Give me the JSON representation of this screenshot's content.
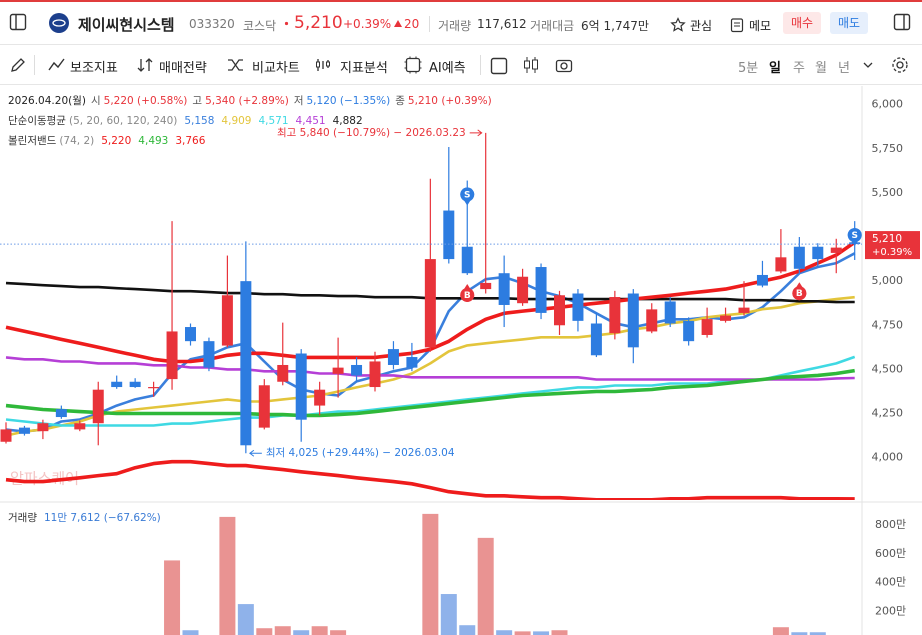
{
  "header": {
    "stock_name": "제이씨현시스템",
    "code": "033320",
    "market": "코스닥",
    "price": "5,210",
    "change_rate": "+0.39%",
    "change": "20",
    "volume_label": "거래량",
    "volume": "117,612",
    "amount_label": "거래대금",
    "amount": "6억 1,747만",
    "favorite": "관심",
    "memo": "메모",
    "buy": "매수",
    "sell": "매도"
  },
  "toolbar": {
    "tools": [
      "보조지표",
      "매매전략",
      "비교차트",
      "지표분석",
      "AI예측"
    ],
    "periods": [
      "5분",
      "일",
      "주",
      "월",
      "년"
    ],
    "active": 1
  },
  "chart_data": [
    {
      "type": "candlestick",
      "date_label": "2026.04.20(월)",
      "ohlc_legend": [
        {
          "label": "시",
          "text": "5,220 (+0.58%)",
          "color": "#e8333a"
        },
        {
          "label": "고",
          "text": "5,340 (+2.89%)",
          "color": "#e8333a"
        },
        {
          "label": "저",
          "text": "5,120 (−1.35%)",
          "color": "#2d7ce0"
        },
        {
          "label": "종",
          "text": "5,210 (+0.39%)",
          "color": "#e8333a"
        }
      ],
      "up_color": "#e8333a",
      "down_color": "#2d7ce0",
      "open": [
        4090,
        4170,
        4150,
        4275,
        4160,
        4195,
        4430,
        4430,
        4395,
        4445,
        4740,
        4660,
        4635,
        5000,
        4170,
        4430,
        4590,
        4295,
        4475,
        4525,
        4400,
        4615,
        4570,
        4625,
        5400,
        5195,
        4955,
        5045,
        4875,
        5080,
        4750,
        4930,
        4760,
        4705,
        4930,
        4715,
        4885,
        4775,
        4695,
        4775,
        4820,
        5035,
        5055,
        5195,
        5195,
        5160,
        5220
      ],
      "high": [
        4200,
        4180,
        4215,
        4295,
        4210,
        4430,
        4465,
        4450,
        4430,
        5340,
        4760,
        4680,
        5145,
        5225,
        4445,
        4765,
        4615,
        4430,
        4680,
        4570,
        4600,
        4660,
        4650,
        5580,
        5760,
        5570,
        5840,
        5145,
        5070,
        5100,
        4945,
        4955,
        4820,
        4945,
        4955,
        4875,
        4910,
        4795,
        4850,
        4850,
        5000,
        5115,
        5295,
        5250,
        5215,
        5240,
        5340
      ],
      "low": [
        4080,
        4125,
        4105,
        4220,
        4150,
        4070,
        4390,
        4395,
        4345,
        4385,
        4635,
        4490,
        4625,
        4025,
        4160,
        4410,
        4090,
        4240,
        4340,
        4430,
        4375,
        4500,
        4490,
        4600,
        5100,
        5035,
        4930,
        4740,
        4860,
        4785,
        4695,
        4715,
        4570,
        4670,
        4535,
        4705,
        4740,
        4635,
        4680,
        4765,
        4805,
        4965,
        5045,
        5045,
        5080,
        5045,
        5120
      ],
      "close": [
        4160,
        4135,
        4195,
        4230,
        4195,
        4385,
        4400,
        4400,
        4400,
        4715,
        4660,
        4510,
        4920,
        4070,
        4410,
        4525,
        4215,
        4385,
        4510,
        4465,
        4545,
        4525,
        4510,
        5125,
        5125,
        5045,
        4990,
        4865,
        5025,
        4820,
        4920,
        4775,
        4580,
        4910,
        4625,
        4840,
        4760,
        4660,
        4785,
        4805,
        4850,
        4975,
        5135,
        5070,
        5125,
        5190,
        5210
      ],
      "indicators": [
        {
          "label": "단순이동평균",
          "params": "(5, 20, 60, 120, 240)",
          "lines": [
            {
              "color": "#3a7fdc",
              "value_label": "5,158",
              "values": [
                4159,
                4148,
                4159,
                4205,
                4216,
                4250,
                4295,
                4330,
                4352,
                4477,
                4557,
                4580,
                4625,
                4648,
                4545,
                4443,
                4386,
                4364,
                4352,
                4432,
                4460,
                4489,
                4511,
                4614,
                4830,
                4943,
                5011,
                5023,
                4989,
                4943,
                4915,
                4875,
                4818,
                4761,
                4739,
                4761,
                4784,
                4784,
                4795,
                4784,
                4795,
                4852,
                4943,
                5045,
                5080,
                5102,
                5158
              ]
            },
            {
              "color": "#e3c53c",
              "value_label": "4,909",
              "values": [
                4125,
                4148,
                4159,
                4182,
                4205,
                4239,
                4261,
                4273,
                4284,
                4295,
                4307,
                4318,
                4330,
                4318,
                4318,
                4330,
                4341,
                4352,
                4375,
                4398,
                4420,
                4443,
                4477,
                4534,
                4602,
                4636,
                4648,
                4659,
                4670,
                4682,
                4682,
                4682,
                4693,
                4705,
                4727,
                4739,
                4761,
                4773,
                4795,
                4807,
                4818,
                4841,
                4852,
                4875,
                4886,
                4898,
                4909
              ]
            },
            {
              "color": "#3fd9e3",
              "value_label": "4,571",
              "values": [
                4216,
                4205,
                4193,
                4182,
                4182,
                4182,
                4182,
                4182,
                4182,
                4193,
                4193,
                4205,
                4216,
                4227,
                4227,
                4239,
                4239,
                4250,
                4261,
                4261,
                4273,
                4284,
                4295,
                4307,
                4318,
                4330,
                4341,
                4352,
                4364,
                4375,
                4386,
                4398,
                4398,
                4409,
                4409,
                4409,
                4420,
                4420,
                4420,
                4432,
                4432,
                4443,
                4466,
                4489,
                4511,
                4534,
                4571
              ]
            },
            {
              "color": "#b53fd6",
              "value_label": "4,451",
              "values": [
                4568,
                4557,
                4557,
                4545,
                4545,
                4534,
                4534,
                4534,
                4523,
                4523,
                4511,
                4511,
                4500,
                4500,
                4489,
                4489,
                4489,
                4477,
                4477,
                4466,
                4466,
                4466,
                4455,
                4455,
                4455,
                4455,
                4455,
                4455,
                4455,
                4455,
                4455,
                4455,
                4443,
                4443,
                4443,
                4443,
                4443,
                4443,
                4443,
                4443,
                4443,
                4443,
                4443,
                4443,
                4443,
                4449,
                4451
              ]
            },
            {
              "color": "#111111",
              "value_label": "4,882",
              "values": [
                4989,
                4983,
                4977,
                4972,
                4966,
                4966,
                4960,
                4955,
                4949,
                4943,
                4943,
                4938,
                4932,
                4932,
                4926,
                4926,
                4920,
                4920,
                4915,
                4915,
                4909,
                4909,
                4909,
                4903,
                4903,
                4903,
                4903,
                4903,
                4898,
                4898,
                4898,
                4898,
                4898,
                4898,
                4898,
                4898,
                4898,
                4898,
                4898,
                4898,
                4892,
                4892,
                4892,
                4886,
                4886,
                4881,
                4882
              ]
            }
          ]
        },
        {
          "label": "볼린저밴드",
          "params": "(74, 2)",
          "lines": [
            {
              "color": "#ee1c1c",
              "value_label": "5,220",
              "values": [
                4739,
                4716,
                4693,
                4670,
                4648,
                4625,
                4602,
                4580,
                4557,
                4545,
                4545,
                4557,
                4580,
                4591,
                4591,
                4580,
                4568,
                4568,
                4568,
                4568,
                4568,
                4580,
                4591,
                4614,
                4659,
                4727,
                4784,
                4818,
                4830,
                4841,
                4852,
                4864,
                4875,
                4886,
                4898,
                4909,
                4920,
                4932,
                4943,
                4955,
                4977,
                5000,
                5023,
                5057,
                5102,
                5148,
                5220
              ]
            },
            {
              "color": "#2fb83a",
              "value_label": "4,493",
              "values": [
                4295,
                4284,
                4273,
                4267,
                4261,
                4256,
                4250,
                4250,
                4250,
                4250,
                4250,
                4250,
                4250,
                4250,
                4244,
                4244,
                4239,
                4239,
                4244,
                4250,
                4261,
                4273,
                4284,
                4295,
                4307,
                4318,
                4330,
                4341,
                4352,
                4358,
                4364,
                4369,
                4375,
                4375,
                4381,
                4386,
                4398,
                4403,
                4409,
                4420,
                4432,
                4443,
                4455,
                4460,
                4466,
                4477,
                4493
              ]
            },
            {
              "color": "#ee1c1c",
              "value_label": "3,766",
              "values": [
                3875,
                3864,
                3864,
                3875,
                3886,
                3898,
                3909,
                3943,
                3966,
                3977,
                3977,
                3966,
                3955,
                3955,
                3943,
                3932,
                3920,
                3909,
                3898,
                3886,
                3875,
                3864,
                3852,
                3830,
                3807,
                3795,
                3784,
                3784,
                3778,
                3773,
                3773,
                3767,
                3761,
                3761,
                3761,
                3761,
                3767,
                3767,
                3773,
                3773,
                3773,
                3773,
                3773,
                3767,
                3767,
                3767,
                3766
              ]
            }
          ]
        }
      ],
      "annotations": [
        {
          "text": "최고 5,840 (−10.79%) − 2026.03.23",
          "value": 5840,
          "candle": 26,
          "side": "left"
        },
        {
          "text": "최저 4,025 (+29.44%) − 2026.03.04",
          "value": 4025,
          "candle": 13,
          "side": "right"
        }
      ],
      "signals": [
        {
          "label": "S",
          "candle": 25,
          "color": "#2d7ce0"
        },
        {
          "label": "B",
          "candle": 25,
          "color": "#e8333a"
        },
        {
          "label": "B",
          "candle": 43,
          "color": "#e8333a"
        },
        {
          "label": "S",
          "candle": 46,
          "color": "#2d7ce0"
        }
      ],
      "current_price": {
        "value": 5210,
        "label": "5,210",
        "change": "+0.39%",
        "color": "#e8333a"
      },
      "watermark": "알파스퀘어",
      "ylim": [
        3760,
        6100
      ],
      "yticks": [
        {
          "value": 4000,
          "label": "4,000"
        },
        {
          "value": 4250,
          "label": "4,250"
        },
        {
          "value": 4500,
          "label": "4,500"
        },
        {
          "value": 4750,
          "label": "4,750"
        },
        {
          "value": 5000,
          "label": "5,000"
        },
        {
          "value": 5500,
          "label": "5,500"
        },
        {
          "value": 5750,
          "label": "5,750"
        },
        {
          "value": 6000,
          "label": "6,000"
        }
      ],
      "grid": false
    },
    {
      "type": "bar",
      "title": "거래량",
      "value_label": "11만 7,612 (−67.62%)",
      "up_color": "#e99392",
      "down_color": "#8fb2ea",
      "values": [
        300000,
        300000,
        300000,
        300000,
        300000,
        300000,
        300000,
        300000,
        300000,
        5540000,
        680000,
        300000,
        8570000,
        2500000,
        820000,
        960000,
        680000,
        960000,
        680000,
        300000,
        300000,
        300000,
        300000,
        8780000,
        3200000,
        1030000,
        7110000,
        680000,
        600000,
        600000,
        680000,
        300000,
        300000,
        300000,
        300000,
        300000,
        300000,
        300000,
        300000,
        300000,
        300000,
        300000,
        890000,
        540000,
        540000,
        300000,
        117612
      ],
      "ylim": [
        0,
        9050000
      ],
      "yticks": [
        {
          "value": 2000000,
          "label": "200만"
        },
        {
          "value": 4000000,
          "label": "400만"
        },
        {
          "value": 6000000,
          "label": "600만"
        },
        {
          "value": 8000000,
          "label": "800만"
        }
      ],
      "grid": false
    }
  ]
}
